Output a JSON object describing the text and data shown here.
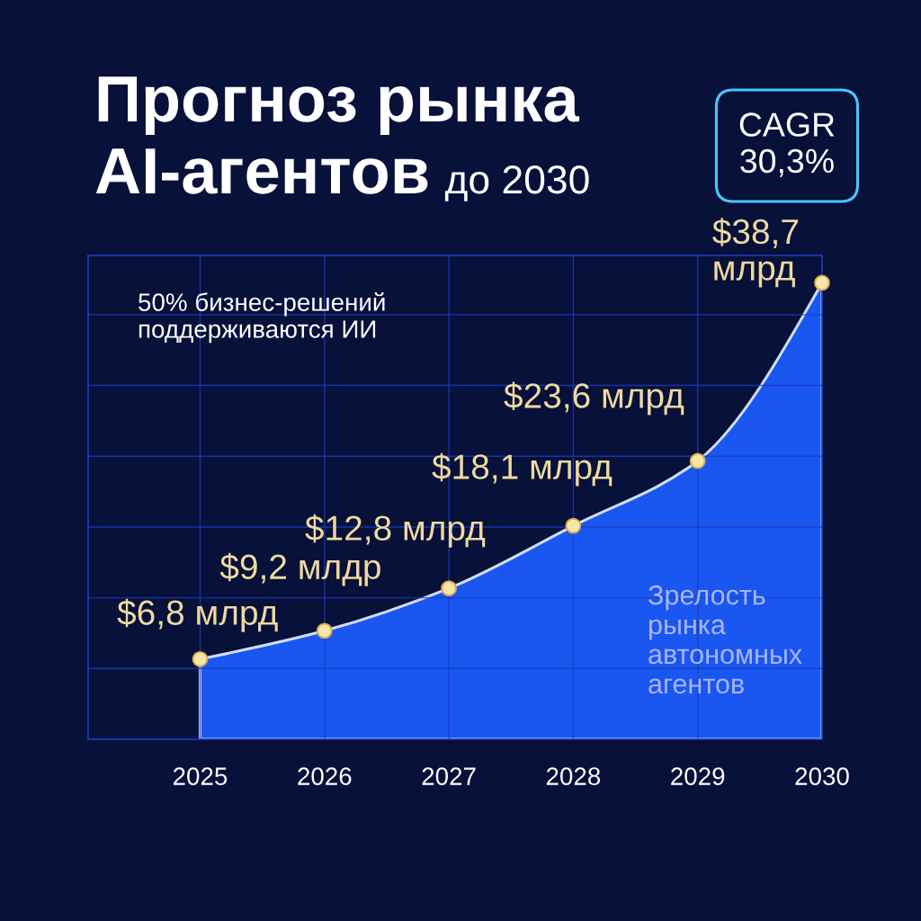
{
  "chart_data": {
    "type": "area",
    "title": "Прогноз рынка\nAI-агентов",
    "subtitle": "до 2030",
    "x": [
      2025,
      2026,
      2027,
      2028,
      2029,
      2030
    ],
    "series": [
      {
        "color": "#1a56f0",
        "values": [
          6.8,
          9.2,
          12.8,
          18.1,
          23.6,
          38.7
        ]
      },
      {
        "type": "scatter",
        "marker": "circle",
        "color": "#f6e7a8",
        "values": [
          6.8,
          9.2,
          12.8,
          18.1,
          23.6,
          38.7
        ],
        "value_labels": [
          "$6,8 млрд",
          "$9,2 млдр",
          "$12,8 млрд",
          "$18,1 млрд",
          "$23,6 млрд",
          "$38,7\nмлрд"
        ]
      }
    ],
    "xlim": [
      2024.1,
      2030
    ],
    "xticks": [
      2025,
      2026,
      2027,
      2028,
      2029,
      2030
    ],
    "grid": true,
    "tick_labels": "x",
    "annotations": [
      "50% бизнес-решений\nподдерживаются ИИ",
      "Зрелость\nрынка\nавтономных\nагентов",
      "CAGR\n30,3%"
    ]
  }
}
